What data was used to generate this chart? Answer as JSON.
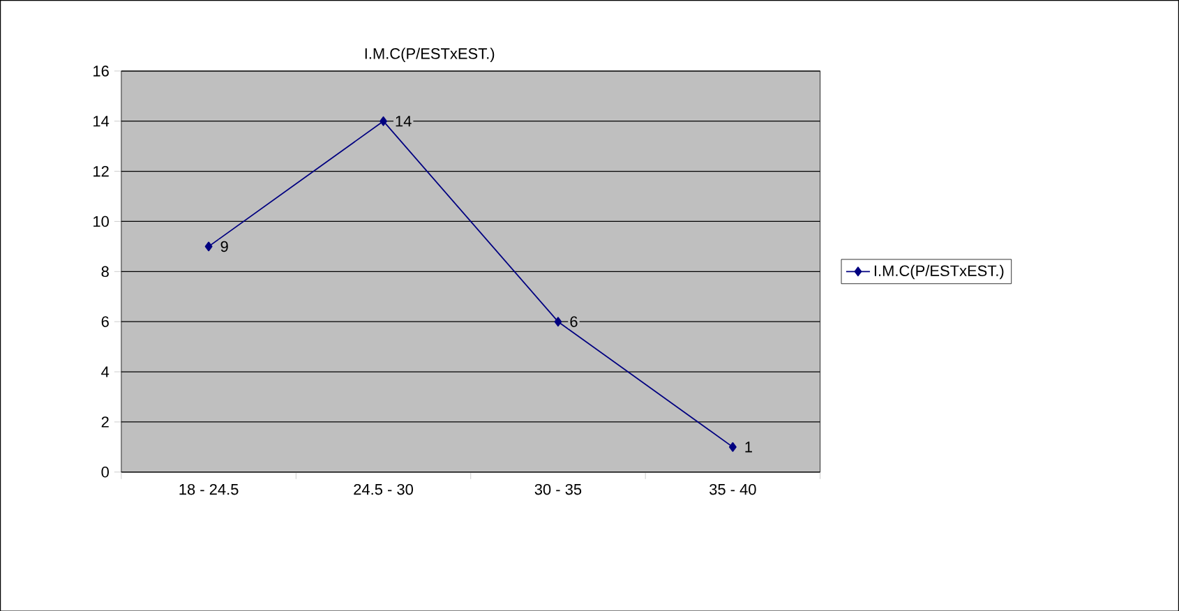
{
  "chart_data": {
    "type": "line",
    "title": "I.M.C(P/ESTxEST.)",
    "categories": [
      "18 - 24.5",
      "24.5 - 30",
      "30 - 35",
      "35 - 40"
    ],
    "series": [
      {
        "name": "I.M.C(P/ESTxEST.)",
        "color": "#000080",
        "values": [
          9,
          14,
          6,
          1
        ]
      }
    ],
    "ylim": [
      0,
      16
    ],
    "yticks": [
      0,
      2,
      4,
      6,
      8,
      10,
      12,
      14,
      16
    ],
    "grid": "y",
    "legend": "right",
    "marker": "diamond",
    "line_style": "solid",
    "data_labels": true
  }
}
